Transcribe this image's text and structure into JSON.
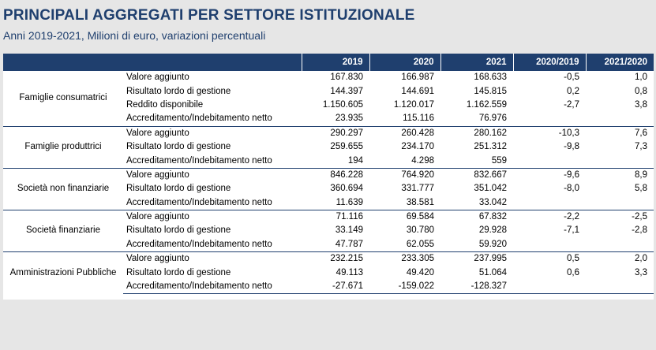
{
  "title": "PRINCIPALI AGGREGATI PER SETTORE ISTITUZIONALE",
  "subtitle": "Anni 2019-2021, Milioni di euro, variazioni percentuali",
  "columns": [
    "",
    "",
    "2019",
    "2020",
    "2021",
    "2020/2019",
    "2021/2020"
  ],
  "groups": [
    {
      "sector": "Famiglie consumatrici",
      "rows": [
        {
          "metric": "Valore aggiunto",
          "v2019": "167.830",
          "v2020": "166.987",
          "v2021": "168.633",
          "var2019": "-0,5",
          "var2020": "1,0"
        },
        {
          "metric": "Risultato lordo di gestione",
          "v2019": "144.397",
          "v2020": "144.691",
          "v2021": "145.815",
          "var2019": "0,2",
          "var2020": "0,8"
        },
        {
          "metric": "Reddito disponibile",
          "v2019": "1.150.605",
          "v2020": "1.120.017",
          "v2021": "1.162.559",
          "var2019": "-2,7",
          "var2020": "3,8"
        },
        {
          "metric": "Accreditamento/Indebitamento netto",
          "v2019": "23.935",
          "v2020": "115.116",
          "v2021": "76.976",
          "var2019": "",
          "var2020": ""
        }
      ]
    },
    {
      "sector": "Famiglie produttrici",
      "rows": [
        {
          "metric": "Valore aggiunto",
          "v2019": "290.297",
          "v2020": "260.428",
          "v2021": "280.162",
          "var2019": "-10,3",
          "var2020": "7,6"
        },
        {
          "metric": "Risultato lordo di gestione",
          "v2019": "259.655",
          "v2020": "234.170",
          "v2021": "251.312",
          "var2019": "-9,8",
          "var2020": "7,3"
        },
        {
          "metric": "Accreditamento/Indebitamento netto",
          "v2019": "194",
          "v2020": "4.298",
          "v2021": "559",
          "var2019": "",
          "var2020": ""
        }
      ]
    },
    {
      "sector": "Società non finanziarie",
      "rows": [
        {
          "metric": "Valore aggiunto",
          "v2019": "846.228",
          "v2020": "764.920",
          "v2021": "832.667",
          "var2019": "-9,6",
          "var2020": "8,9"
        },
        {
          "metric": "Risultato lordo di gestione",
          "v2019": "360.694",
          "v2020": "331.777",
          "v2021": "351.042",
          "var2019": "-8,0",
          "var2020": "5,8"
        },
        {
          "metric": "Accreditamento/Indebitamento netto",
          "v2019": "11.639",
          "v2020": "38.581",
          "v2021": "33.042",
          "var2019": "",
          "var2020": ""
        }
      ]
    },
    {
      "sector": "Società finanziarie",
      "rows": [
        {
          "metric": "Valore aggiunto",
          "v2019": "71.116",
          "v2020": "69.584",
          "v2021": "67.832",
          "var2019": "-2,2",
          "var2020": "-2,5"
        },
        {
          "metric": "Risultato lordo di gestione",
          "v2019": "33.149",
          "v2020": "30.780",
          "v2021": "29.928",
          "var2019": "-7,1",
          "var2020": "-2,8"
        },
        {
          "metric": "Accreditamento/Indebitamento netto",
          "v2019": "47.787",
          "v2020": "62.055",
          "v2021": "59.920",
          "var2019": "",
          "var2020": ""
        }
      ]
    },
    {
      "sector": "Amministrazioni Pubbliche",
      "rows": [
        {
          "metric": "Valore aggiunto",
          "v2019": "232.215",
          "v2020": "233.305",
          "v2021": "237.995",
          "var2019": "0,5",
          "var2020": "2,0"
        },
        {
          "metric": "Risultato lordo di gestione",
          "v2019": "49.113",
          "v2020": "49.420",
          "v2021": "51.064",
          "var2019": "0,6",
          "var2020": "3,3"
        },
        {
          "metric": "Accreditamento/Indebitamento netto",
          "v2019": "-27.671",
          "v2020": "-159.022",
          "v2021": "-128.327",
          "var2019": "",
          "var2020": ""
        }
      ]
    }
  ],
  "colors": {
    "header_bg": "#1f3f6e",
    "title": "#1f3f6e",
    "background": "#e6e6e6"
  }
}
